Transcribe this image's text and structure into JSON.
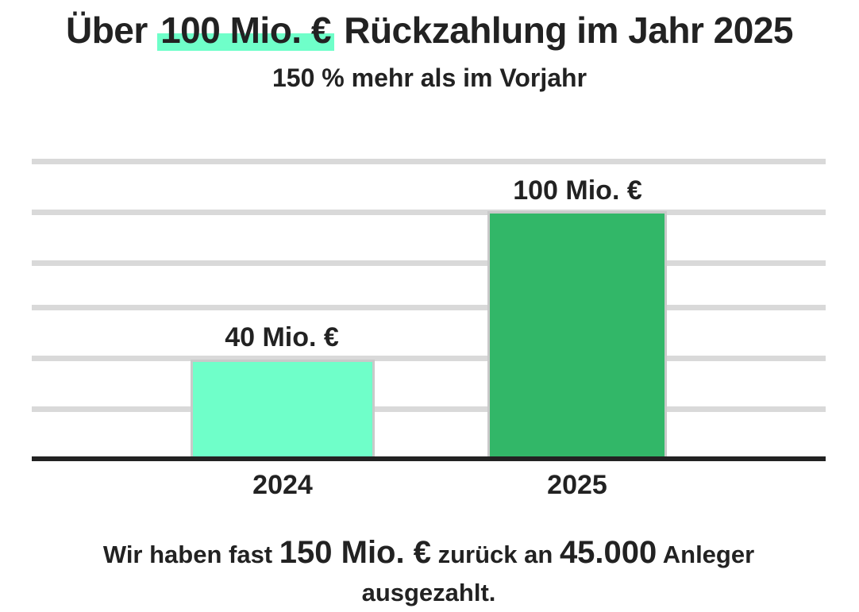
{
  "title": {
    "prefix": "Über",
    "highlight": "100 Mio. €",
    "suffix": "Rückzahlung im Jahr 2025",
    "highlight_color": "#6fffc9"
  },
  "subtitle": "150 % mehr als im Vorjahr",
  "footer": {
    "part1": "Wir haben fast",
    "amount": "150 Mio. €",
    "part2": "zurück an",
    "investors": "45.000",
    "part3": "Anleger",
    "part4": "ausgezahlt."
  },
  "colors": {
    "bar_2024": "#6fffc9",
    "bar_2025": "#32b768",
    "grid": "#d9d9d9",
    "axis": "#222222",
    "text": "#222222"
  },
  "chart_data": {
    "type": "bar",
    "title": "Über 100 Mio. € Rückzahlung im Jahr 2025",
    "subtitle": "150 % mehr als im Vorjahr",
    "categories": [
      "2024",
      "2025"
    ],
    "values": [
      40,
      100
    ],
    "value_labels": [
      "40 Mio. €",
      "100 Mio. €"
    ],
    "unit": "Mio. €",
    "xlabel": "",
    "ylabel": "",
    "ylim": [
      0,
      120
    ],
    "grid": true,
    "legend": "none",
    "bars": [
      {
        "category": "2024",
        "value": 40,
        "label": "40 Mio. €",
        "color": "#6fffc9"
      },
      {
        "category": "2025",
        "value": 100,
        "label": "100 Mio. €",
        "color": "#32b768"
      }
    ]
  }
}
